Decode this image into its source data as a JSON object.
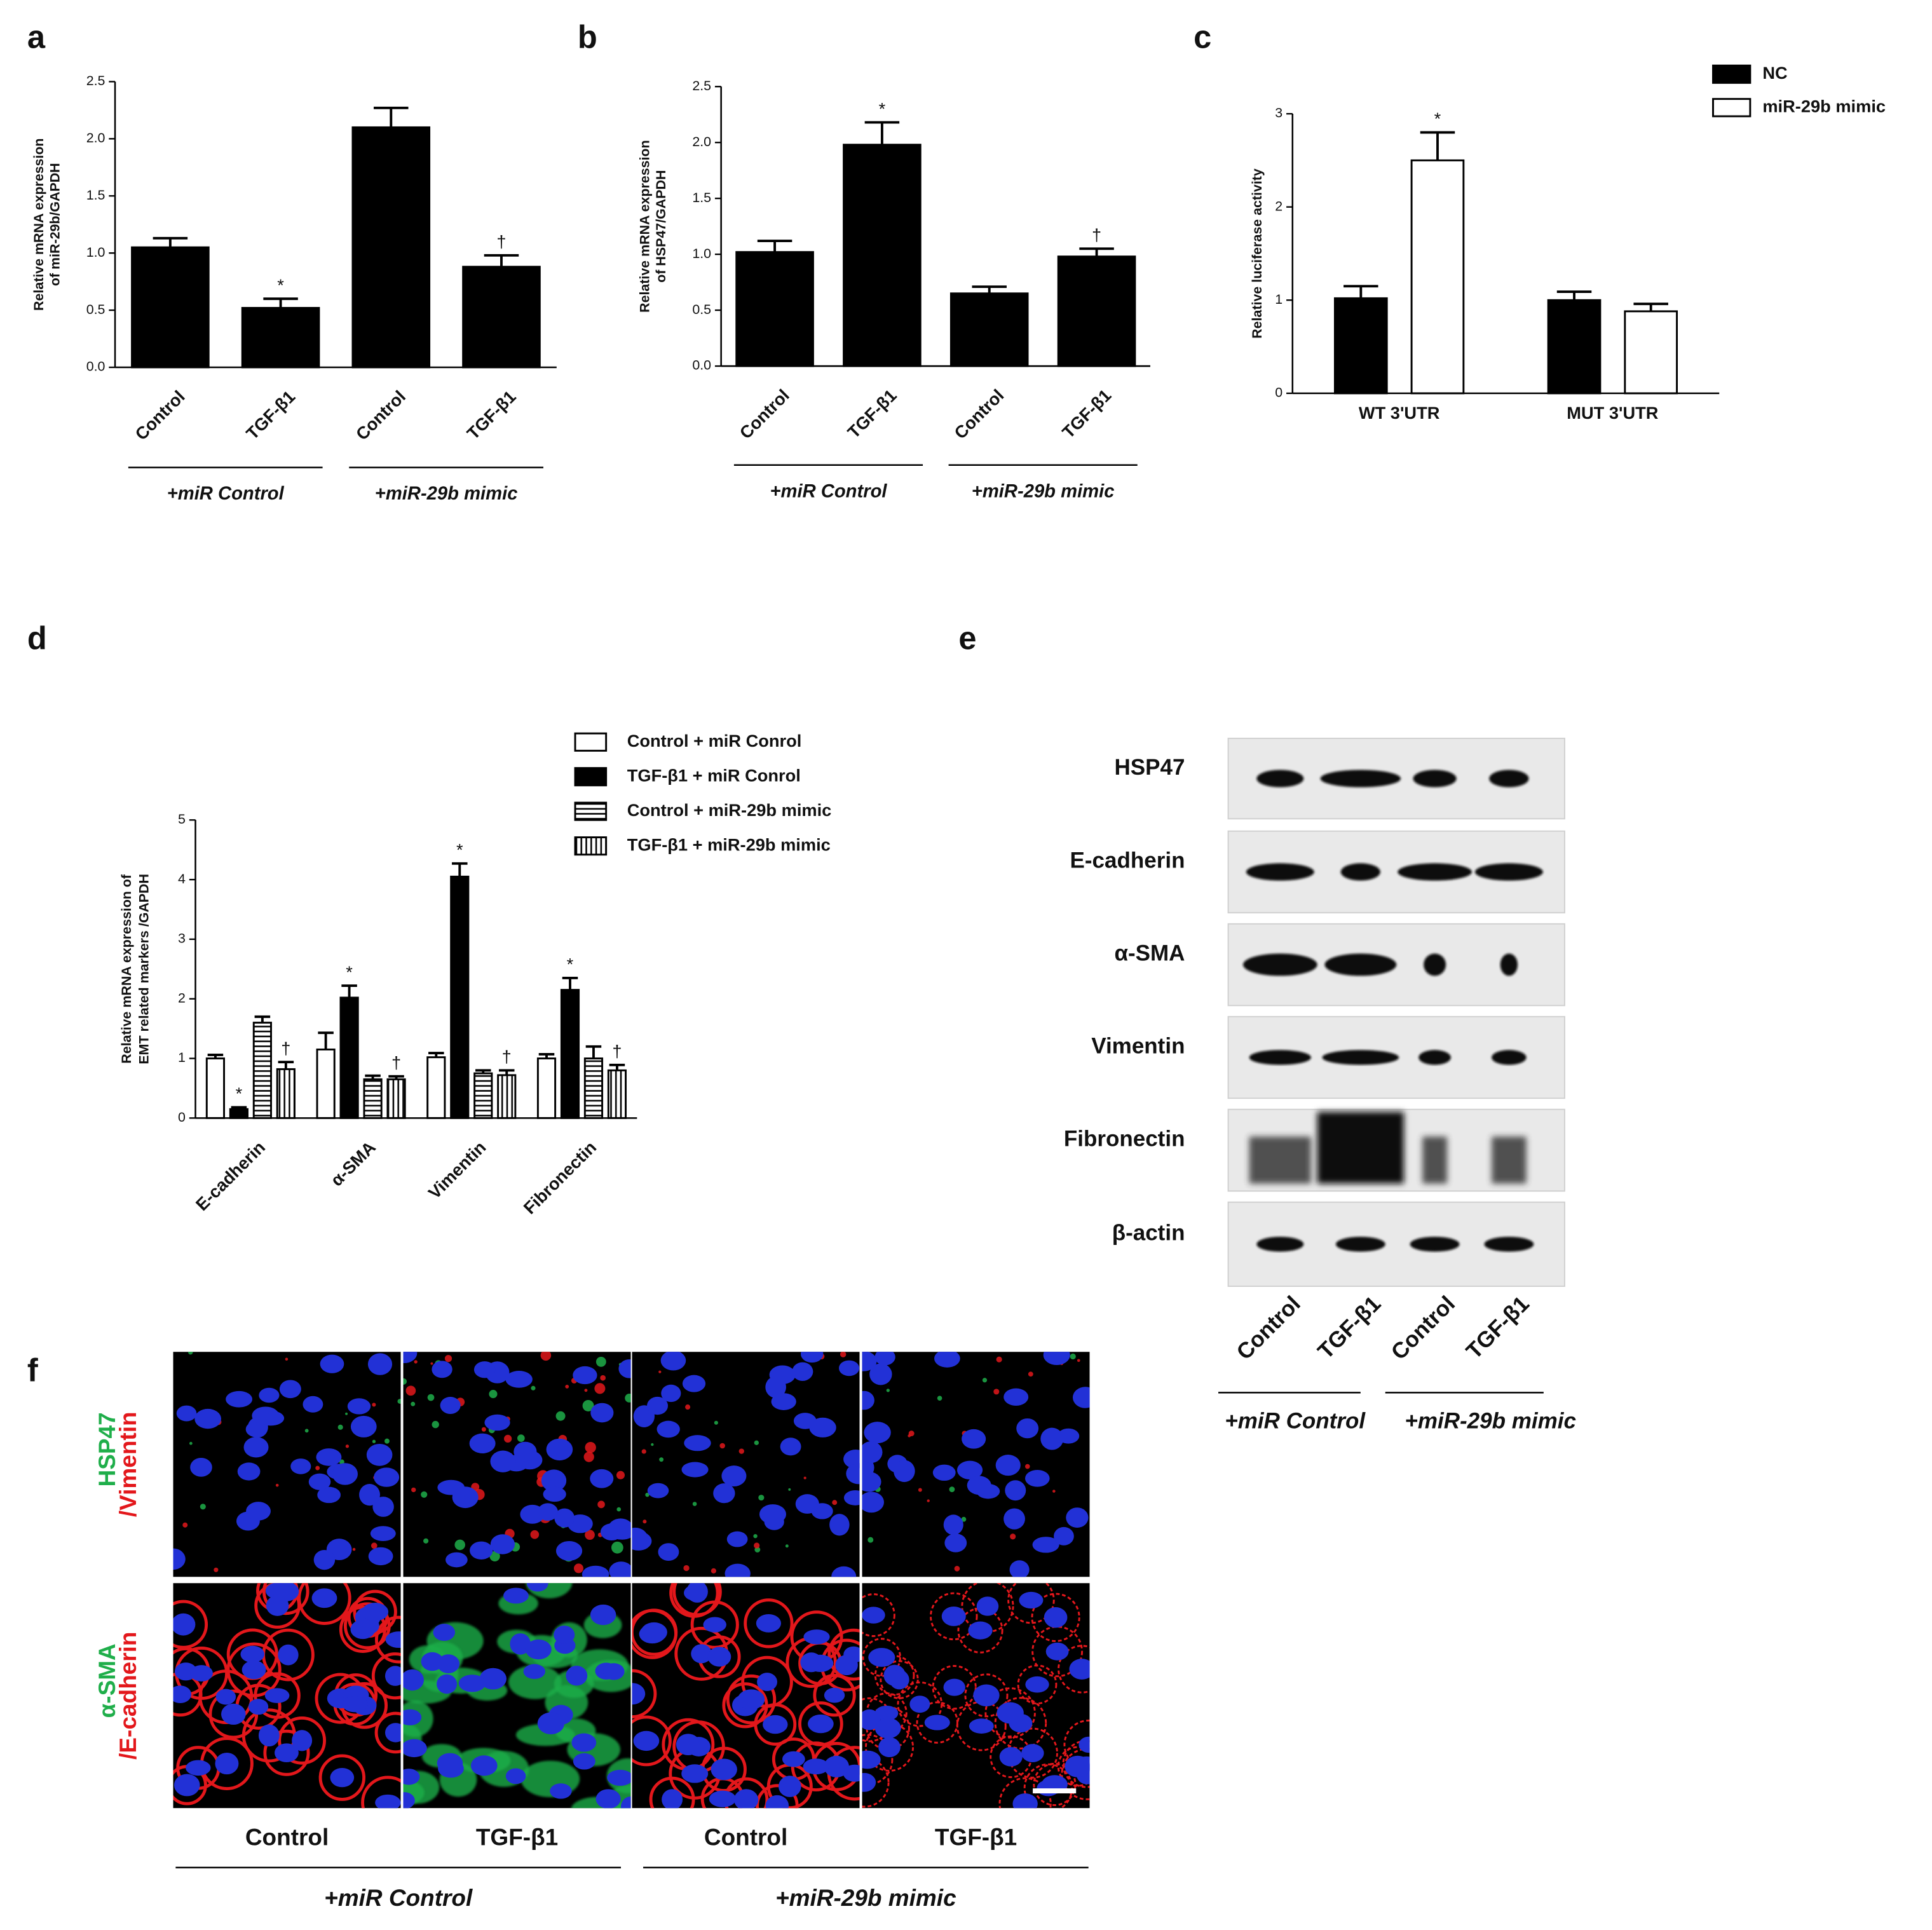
{
  "chart_data": [
    {
      "type": "bar",
      "panel_label": "a",
      "ylabel": [
        "Relative mRNA expression",
        "of miR-29b/GAPDH"
      ],
      "categories": [
        "Control",
        "TGF-β1",
        "Control",
        "TGF-β1"
      ],
      "group_labels": [
        "+miR Control",
        "+miR-29b mimic"
      ],
      "values": [
        1.05,
        0.52,
        2.1,
        0.88
      ],
      "errors": [
        0.08,
        0.08,
        0.17,
        0.1
      ],
      "significance": [
        null,
        "*",
        null,
        "†"
      ],
      "color": "#000000",
      "ylim": [
        0,
        2.5
      ],
      "yticks": [
        {
          "value": 0,
          "label": "0.0"
        },
        0.5,
        {
          "value": 1,
          "label": "1.0"
        },
        1.5,
        {
          "value": 2,
          "label": "2.0"
        },
        2.5
      ]
    },
    {
      "type": "bar",
      "panel_label": "b",
      "ylabel": [
        "Relative mRNA expression",
        "of HSP47/GAPDH"
      ],
      "categories": [
        "Control",
        "TGF-β1",
        "Control",
        "TGF-β1"
      ],
      "group_labels": [
        "+miR Control",
        "+miR-29b mimic"
      ],
      "values": [
        1.02,
        1.98,
        0.65,
        0.98
      ],
      "errors": [
        0.1,
        0.2,
        0.06,
        0.07
      ],
      "significance": [
        null,
        "*",
        null,
        "†"
      ],
      "color": "#000000",
      "ylim": [
        0,
        2.5
      ],
      "yticks": [
        {
          "value": 0,
          "label": "0.0"
        },
        0.5,
        {
          "value": 1,
          "label": "1.0"
        },
        1.5,
        {
          "value": 2,
          "label": "2.0"
        },
        2.5
      ]
    },
    {
      "type": "bar",
      "panel_label": "c",
      "ylabel": [
        "Relative luciferase activity"
      ],
      "categories": [
        "WT 3'UTR",
        "MUT 3'UTR"
      ],
      "series": [
        {
          "name": "NC",
          "color": "#000000",
          "values": [
            1.02,
            1.0
          ],
          "errors": [
            0.13,
            0.09
          ]
        },
        {
          "name": "miR-29b mimic",
          "color": "#ffffff",
          "values": [
            2.5,
            0.88
          ],
          "errors": [
            0.3,
            0.08
          ],
          "significance": [
            "*",
            null
          ]
        }
      ],
      "ylim": [
        0,
        3
      ],
      "yticks": [
        0,
        1,
        2,
        3
      ]
    },
    {
      "type": "bar",
      "panel_label": "d",
      "ylabel": [
        "Relative mRNA expression of",
        "EMT related markers /GAPDH"
      ],
      "categories": [
        "E-cadherin",
        "α-SMA",
        "Vimentin",
        "Fibronectin"
      ],
      "series": [
        {
          "name": "Control + miR Conrol",
          "color": "#ffffff",
          "values": [
            1.0,
            1.15,
            1.02,
            1.0
          ],
          "errors": [
            0.06,
            0.28,
            0.07,
            0.07
          ]
        },
        {
          "name": "TGF-β1 + miR Conrol",
          "color": "#000000",
          "values": [
            0.15,
            2.02,
            4.05,
            2.15
          ],
          "errors": [
            0.03,
            0.2,
            0.22,
            0.2
          ],
          "significance": [
            "*",
            "*",
            "*",
            "*"
          ]
        },
        {
          "name": "Control + miR-29b mimic",
          "color": "#ffffff",
          "pattern": "hstripe",
          "values": [
            1.6,
            0.65,
            0.75,
            1.0
          ],
          "errors": [
            0.1,
            0.06,
            0.05,
            0.2
          ]
        },
        {
          "name": "TGF-β1 + miR-29b mimic",
          "color": "#ffffff",
          "pattern": "vstripe",
          "values": [
            0.82,
            0.65,
            0.72,
            0.8
          ],
          "errors": [
            0.12,
            0.05,
            0.08,
            0.09
          ],
          "significance": [
            "†",
            "†",
            "†",
            "†"
          ]
        }
      ],
      "ylim": [
        0,
        5
      ],
      "yticks": [
        0,
        1,
        2,
        3,
        4,
        5
      ]
    }
  ],
  "blot": {
    "panel_label": "e",
    "proteins": [
      "HSP47",
      "E-cadherin",
      "α-SMA",
      "Vimentin",
      "Fibronectin",
      "β-actin"
    ],
    "lanes": [
      "Control",
      "TGF-β1",
      "Control",
      "TGF-β1"
    ],
    "group_labels": [
      "+miR Control",
      "+miR-29b mimic"
    ]
  },
  "micrographs": {
    "panel_label": "f",
    "rows": [
      [
        "HSP47",
        "/Vimentin"
      ],
      [
        "α-SMA",
        "/E-cadherin"
      ]
    ],
    "stain_colors": [
      "#1fae4a",
      "#e3171b"
    ],
    "columns": [
      "Control",
      "TGF-β1",
      "Control",
      "TGF-β1"
    ],
    "group_labels": [
      "+miR Control",
      "+miR-29b mimic"
    ]
  }
}
